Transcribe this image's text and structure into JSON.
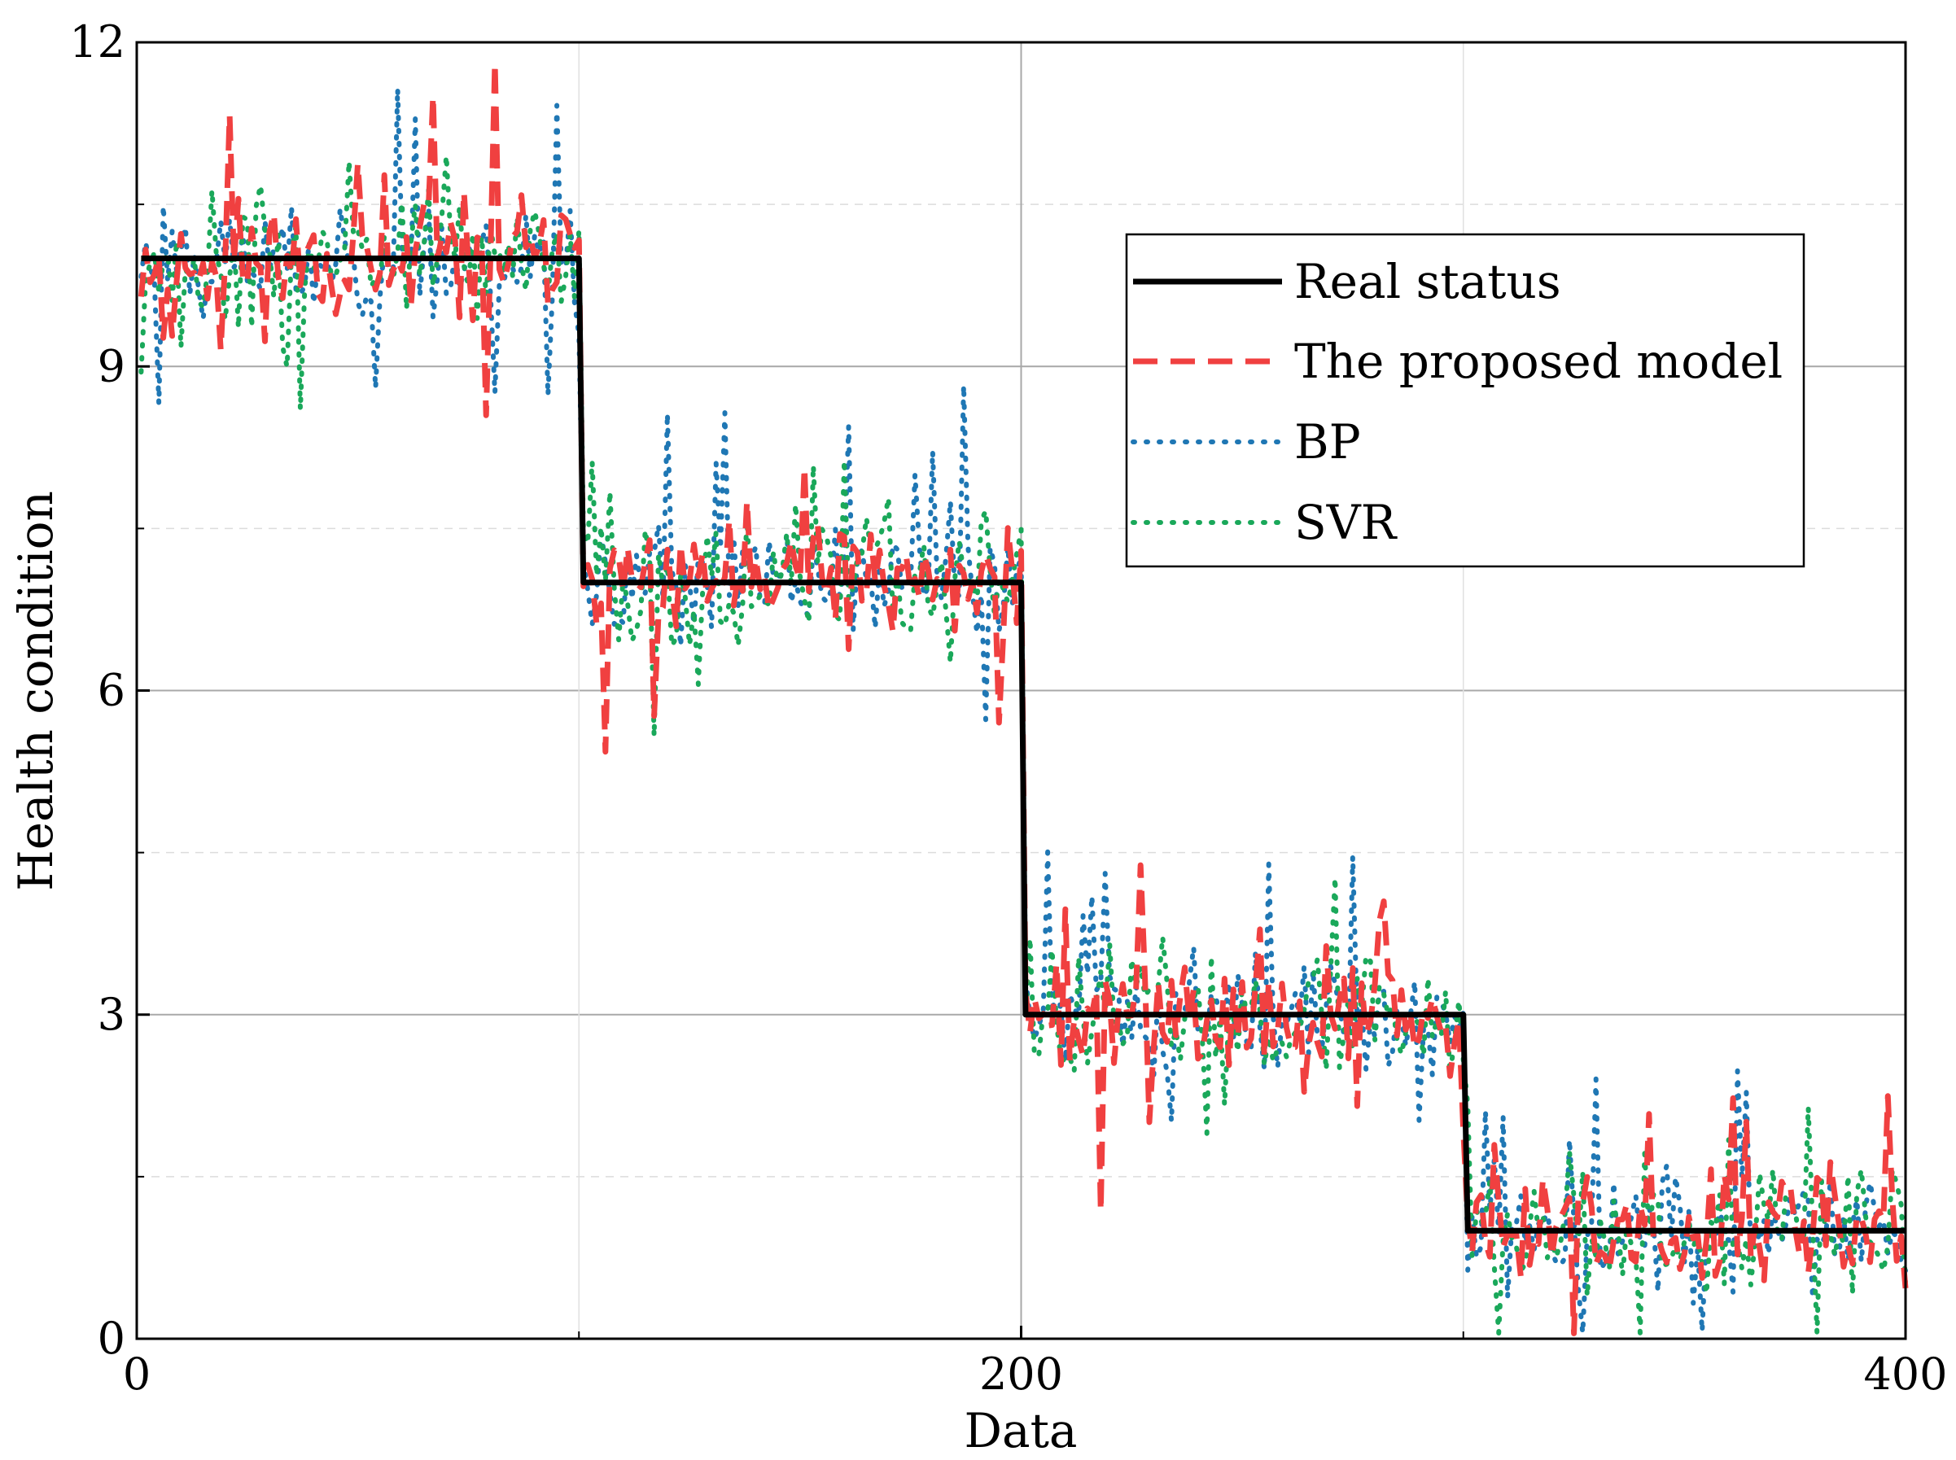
{
  "chart_data": {
    "type": "line",
    "title": "",
    "xlabel": "Data",
    "ylabel": "Health condition",
    "xlim": [
      0,
      400
    ],
    "ylim": [
      0,
      12
    ],
    "xticks": [
      0,
      200,
      400
    ],
    "xtick_labels": [
      "0",
      "200",
      "400"
    ],
    "xminor": [
      100,
      300
    ],
    "yticks": [
      0,
      3,
      6,
      9,
      12
    ],
    "ytick_labels": [
      "0",
      "3",
      "6",
      "9",
      "12"
    ],
    "yminor": [
      1.5,
      4.5,
      7.5,
      10.5
    ],
    "grid": true,
    "legend_position": "top-right",
    "segments": [
      {
        "start": 1,
        "end": 100,
        "level": 10
      },
      {
        "start": 101,
        "end": 200,
        "level": 7
      },
      {
        "start": 201,
        "end": 300,
        "level": 3
      },
      {
        "start": 301,
        "end": 400,
        "level": 1
      }
    ],
    "series": [
      {
        "name": "Real status",
        "style": "solid",
        "color": "#000000",
        "noise": 0,
        "spike": 0,
        "seed": 0
      },
      {
        "name": "The proposed model",
        "style": "dashed",
        "color": "#f04040",
        "noise": 0.35,
        "spike": 1.2,
        "seed": 11
      },
      {
        "name": "BP",
        "style": "dotted",
        "color": "#1f77b4",
        "noise": 0.33,
        "spike": 1.3,
        "seed": 23
      },
      {
        "name": "SVR",
        "style": "dotted",
        "color": "#1aa85a",
        "noise": 0.38,
        "spike": 1.0,
        "seed": 37
      }
    ]
  }
}
